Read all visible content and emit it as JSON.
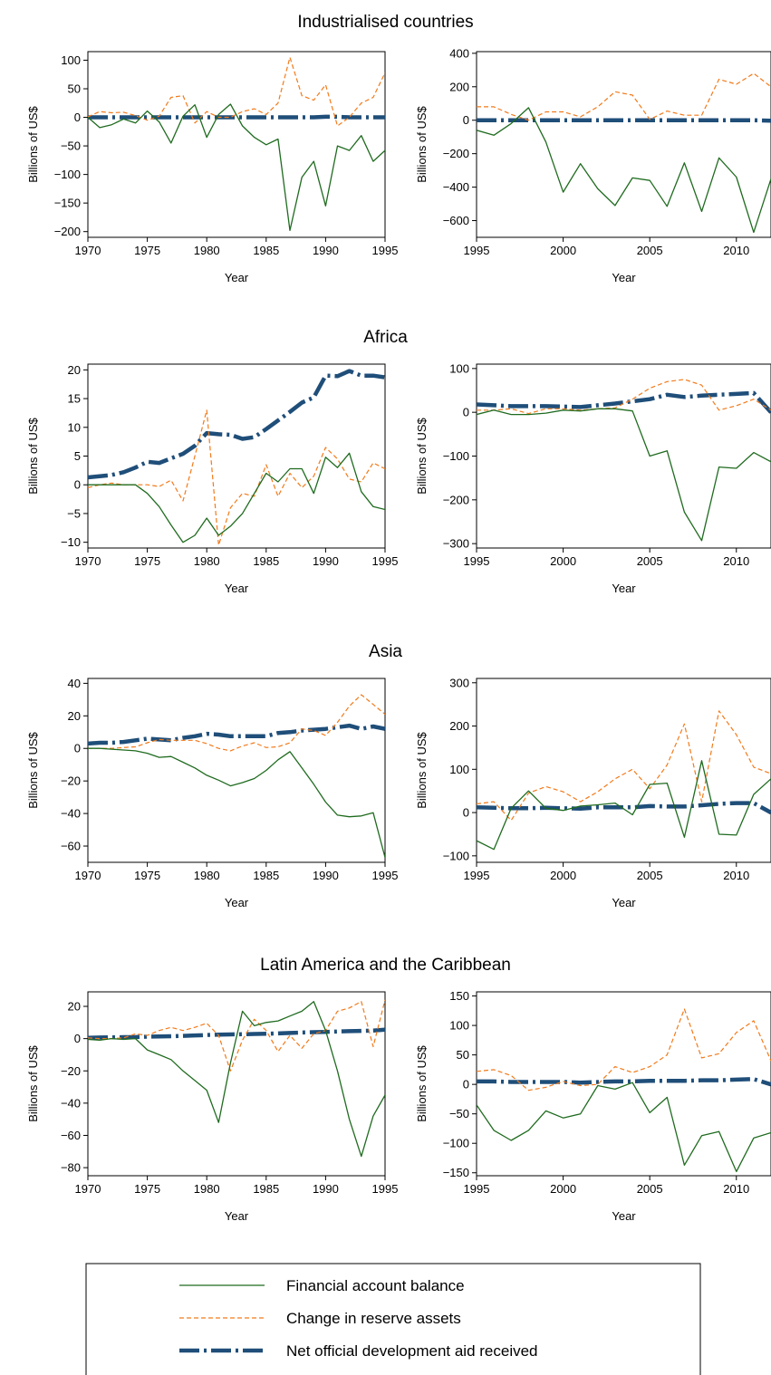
{
  "figure": {
    "legend": [
      {
        "key": "fab",
        "label": "Financial account balance"
      },
      {
        "key": "res",
        "label": "Change in reserve assets"
      },
      {
        "key": "oda",
        "label": "Net official development aid received"
      }
    ]
  },
  "chart_data": [
    {
      "type": "line",
      "panel_title": "Industrialised countries",
      "xlabel": "Year",
      "ylabel": "Billions of US$",
      "xlim": [
        1970,
        1995
      ],
      "ylim": [
        -210,
        115
      ],
      "xticks": [
        1970,
        1975,
        1980,
        1985,
        1990,
        1995
      ],
      "yticks": [
        -200,
        -150,
        -100,
        -50,
        0,
        50,
        100
      ],
      "x": [
        1970,
        1971,
        1972,
        1973,
        1974,
        1975,
        1976,
        1977,
        1978,
        1979,
        1980,
        1981,
        1982,
        1983,
        1984,
        1985,
        1986,
        1987,
        1988,
        1989,
        1990,
        1991,
        1992,
        1993,
        1994,
        1995
      ],
      "series": [
        {
          "key": "fab",
          "name": "Financial account balance",
          "values": [
            0,
            -18,
            -13,
            -3,
            -10,
            11,
            -8,
            -45,
            2,
            22,
            -35,
            5,
            23,
            -15,
            -35,
            -48,
            -38,
            -198,
            -105,
            -77,
            -155,
            -50,
            -58,
            -32,
            -77,
            -58
          ]
        },
        {
          "key": "res",
          "name": "Change in reserve assets",
          "values": [
            1,
            10,
            8,
            9,
            3,
            -5,
            2,
            35,
            38,
            -10,
            10,
            0,
            0,
            10,
            15,
            5,
            25,
            105,
            38,
            30,
            57,
            -15,
            0,
            25,
            35,
            78
          ]
        },
        {
          "key": "oda",
          "name": "Net official development aid received",
          "values": [
            0,
            0,
            0,
            0,
            0,
            0,
            0,
            0,
            0,
            0,
            0,
            0,
            0,
            0,
            0,
            0,
            0,
            0,
            0,
            0,
            1,
            1,
            0,
            0,
            0,
            0
          ]
        }
      ]
    },
    {
      "type": "line",
      "panel_title": "",
      "xlabel": "Year",
      "ylabel": "Billions of US$",
      "xlim": [
        1995,
        2012
      ],
      "ylim": [
        -700,
        410
      ],
      "xticks": [
        1995,
        2000,
        2005,
        2010
      ],
      "yticks": [
        -600,
        -400,
        -200,
        0,
        200,
        400
      ],
      "x": [
        1995,
        1996,
        1997,
        1998,
        1999,
        2000,
        2001,
        2002,
        2003,
        2004,
        2005,
        2006,
        2007,
        2008,
        2009,
        2010,
        2011,
        2012
      ],
      "series": [
        {
          "key": "fab",
          "name": "Financial account balance",
          "values": [
            -60,
            -90,
            -20,
            75,
            -130,
            -430,
            -260,
            -410,
            -510,
            -345,
            -360,
            -515,
            -255,
            -545,
            -225,
            -340,
            -670,
            -350
          ]
        },
        {
          "key": "res",
          "name": "Change in reserve assets",
          "values": [
            80,
            80,
            35,
            0,
            50,
            50,
            20,
            80,
            170,
            150,
            5,
            55,
            30,
            30,
            245,
            215,
            280,
            200
          ]
        },
        {
          "key": "oda",
          "name": "Net official development aid received",
          "values": [
            0,
            0,
            0,
            0,
            0,
            0,
            0,
            0,
            0,
            0,
            0,
            0,
            0,
            0,
            0,
            0,
            0,
            -3
          ]
        }
      ]
    },
    {
      "type": "line",
      "panel_title": "Africa",
      "xlabel": "Year",
      "ylabel": "Billions of US$",
      "xlim": [
        1970,
        1995
      ],
      "ylim": [
        -11,
        21
      ],
      "xticks": [
        1970,
        1975,
        1980,
        1985,
        1990,
        1995
      ],
      "yticks": [
        -10,
        -5,
        0,
        5,
        10,
        15,
        20
      ],
      "x": [
        1970,
        1971,
        1972,
        1973,
        1974,
        1975,
        1976,
        1977,
        1978,
        1979,
        1980,
        1981,
        1982,
        1983,
        1984,
        1985,
        1986,
        1987,
        1988,
        1989,
        1990,
        1991,
        1992,
        1993,
        1994,
        1995
      ],
      "series": [
        {
          "key": "fab",
          "name": "Financial account balance",
          "values": [
            0,
            0,
            0,
            0,
            0,
            -1.5,
            -3.8,
            -7,
            -10,
            -8.8,
            -5.8,
            -8.8,
            -7.2,
            -5,
            -1.5,
            2,
            0.5,
            2.8,
            2.8,
            -1.5,
            4.8,
            3,
            5.5,
            -1.2,
            -3.8,
            -4.3
          ]
        },
        {
          "key": "res",
          "name": "Change in reserve assets",
          "values": [
            -0.5,
            0,
            0.3,
            0,
            0,
            0,
            -0.3,
            0.8,
            -2.8,
            5,
            13,
            -10.5,
            -4,
            -1.5,
            -2,
            3.5,
            -2,
            2,
            -0.5,
            1.5,
            6.5,
            4.5,
            1,
            0.5,
            3.8,
            2.8
          ]
        },
        {
          "key": "oda",
          "name": "Net official development aid received",
          "values": [
            1.3,
            1.5,
            1.7,
            2.2,
            3,
            4,
            3.8,
            4.6,
            5.4,
            6.8,
            9,
            8.8,
            8.7,
            8,
            8.3,
            9.7,
            11.2,
            12.7,
            14.3,
            15.2,
            19,
            18.9,
            19.8,
            19,
            19,
            18.7
          ]
        }
      ]
    },
    {
      "type": "line",
      "panel_title": "",
      "xlabel": "Year",
      "ylabel": "Billions of US$",
      "xlim": [
        1995,
        2012
      ],
      "ylim": [
        -310,
        110
      ],
      "xticks": [
        1995,
        2000,
        2005,
        2010
      ],
      "yticks": [
        -300,
        -200,
        -100,
        0,
        100
      ],
      "x": [
        1995,
        1996,
        1997,
        1998,
        1999,
        2000,
        2001,
        2002,
        2003,
        2004,
        2005,
        2006,
        2007,
        2008,
        2009,
        2010,
        2011,
        2012
      ],
      "series": [
        {
          "key": "fab",
          "name": "Financial account balance",
          "values": [
            -5,
            5,
            -5,
            -5,
            -2,
            5,
            3,
            8,
            8,
            3,
            -100,
            -88,
            -228,
            -293,
            -125,
            -128,
            -92,
            -113
          ]
        },
        {
          "key": "res",
          "name": "Change in reserve assets",
          "values": [
            5,
            5,
            8,
            -3,
            8,
            8,
            5,
            8,
            10,
            30,
            55,
            70,
            75,
            62,
            5,
            15,
            30,
            5
          ]
        },
        {
          "key": "oda",
          "name": "Net official development aid received",
          "values": [
            18,
            16,
            14,
            14,
            14,
            13,
            12,
            16,
            20,
            25,
            30,
            40,
            35,
            38,
            40,
            42,
            44,
            0
          ]
        }
      ]
    },
    {
      "type": "line",
      "panel_title": "Asia",
      "xlabel": "Year",
      "ylabel": "Billions of US$",
      "xlim": [
        1970,
        1995
      ],
      "ylim": [
        -70,
        43
      ],
      "xticks": [
        1970,
        1975,
        1980,
        1985,
        1990,
        1995
      ],
      "yticks": [
        -60,
        -40,
        -20,
        0,
        20,
        40
      ],
      "x": [
        1970,
        1971,
        1972,
        1973,
        1974,
        1975,
        1976,
        1977,
        1978,
        1979,
        1980,
        1981,
        1982,
        1983,
        1984,
        1985,
        1986,
        1987,
        1988,
        1989,
        1990,
        1991,
        1992,
        1993,
        1994,
        1995
      ],
      "series": [
        {
          "key": "fab",
          "name": "Financial account balance",
          "values": [
            0,
            0,
            -0.5,
            -1,
            -1.5,
            -3,
            -5.5,
            -5,
            -8.5,
            -12,
            -16.5,
            -19.5,
            -23,
            -21,
            -18.5,
            -13.5,
            -7,
            -2,
            -12,
            -22,
            -33,
            -41,
            -42,
            -41.5,
            -39.5,
            -67
          ]
        },
        {
          "key": "res",
          "name": "Change in reserve assets",
          "values": [
            0,
            0,
            0,
            0.5,
            1,
            3.5,
            5.5,
            5,
            5,
            5,
            3,
            0,
            -1.5,
            1.5,
            3.5,
            0.5,
            1,
            3.5,
            12,
            11,
            8,
            16,
            26,
            33,
            27,
            21
          ]
        },
        {
          "key": "oda",
          "name": "Net official development aid received",
          "values": [
            3,
            3.5,
            3.5,
            4,
            5,
            6,
            5.5,
            5,
            6.5,
            7.5,
            9,
            8.5,
            7.5,
            7.5,
            7.5,
            7.5,
            9.5,
            10,
            11,
            11.5,
            12,
            13,
            14,
            12,
            13.5,
            12
          ]
        }
      ]
    },
    {
      "type": "line",
      "panel_title": "",
      "xlabel": "Year",
      "ylabel": "Billions of US$",
      "xlim": [
        1995,
        2012
      ],
      "ylim": [
        -115,
        310
      ],
      "xticks": [
        1995,
        2000,
        2005,
        2010
      ],
      "yticks": [
        -100,
        0,
        100,
        200,
        300
      ],
      "x": [
        1995,
        1996,
        1997,
        1998,
        1999,
        2000,
        2001,
        2002,
        2003,
        2004,
        2005,
        2006,
        2007,
        2008,
        2009,
        2010,
        2011,
        2012
      ],
      "series": [
        {
          "key": "fab",
          "name": "Financial account balance",
          "values": [
            -65,
            -85,
            10,
            50,
            10,
            5,
            15,
            18,
            22,
            -5,
            65,
            68,
            -57,
            120,
            -50,
            -52,
            42,
            78
          ]
        },
        {
          "key": "res",
          "name": "Change in reserve assets",
          "values": [
            20,
            25,
            -18,
            45,
            60,
            48,
            25,
            48,
            78,
            100,
            55,
            110,
            205,
            25,
            235,
            180,
            105,
            90
          ]
        },
        {
          "key": "oda",
          "name": "Net official development aid received",
          "values": [
            12,
            11,
            10,
            10,
            11,
            10,
            9,
            12,
            12,
            12,
            15,
            14,
            14,
            17,
            20,
            22,
            22,
            0
          ]
        }
      ]
    },
    {
      "type": "line",
      "panel_title": "Latin America and the Caribbean",
      "xlabel": "Year",
      "ylabel": "Billions of US$",
      "xlim": [
        1970,
        1995
      ],
      "ylim": [
        -85,
        29
      ],
      "xticks": [
        1970,
        1975,
        1980,
        1985,
        1990,
        1995
      ],
      "yticks": [
        -80,
        -60,
        -40,
        -20,
        0,
        20
      ],
      "x": [
        1970,
        1971,
        1972,
        1973,
        1974,
        1975,
        1976,
        1977,
        1978,
        1979,
        1980,
        1981,
        1982,
        1983,
        1984,
        1985,
        1986,
        1987,
        1988,
        1989,
        1990,
        1991,
        1992,
        1993,
        1994,
        1995
      ],
      "series": [
        {
          "key": "fab",
          "name": "Financial account balance",
          "values": [
            -0.5,
            -1,
            0,
            -0.5,
            0,
            -7,
            -10,
            -13,
            -20,
            -26,
            -32,
            -52,
            -15,
            17,
            8,
            10,
            11,
            14,
            17,
            23,
            5,
            -20,
            -50,
            -73,
            -48,
            -35
          ]
        },
        {
          "key": "res",
          "name": "Change in reserve assets",
          "values": [
            0.5,
            0,
            0,
            0.5,
            3,
            2,
            5,
            7,
            5,
            7,
            9.5,
            2,
            -20,
            -1,
            12,
            5,
            -8,
            2,
            -6,
            3,
            5,
            17,
            19,
            23,
            -5,
            24
          ]
        },
        {
          "key": "oda",
          "name": "Net official development aid received",
          "values": [
            0.5,
            0.7,
            0.8,
            0.9,
            1,
            1.2,
            1.3,
            1.5,
            1.7,
            2,
            2.2,
            2.5,
            2.6,
            2.7,
            2.9,
            3,
            3.2,
            3.5,
            3.8,
            4,
            4.2,
            4.4,
            4.6,
            4.8,
            5,
            5.5
          ]
        }
      ]
    },
    {
      "type": "line",
      "panel_title": "",
      "xlabel": "Year",
      "ylabel": "Billions of US$",
      "xlim": [
        1995,
        2012
      ],
      "ylim": [
        -155,
        157
      ],
      "xticks": [
        1995,
        2000,
        2005,
        2010
      ],
      "yticks": [
        -150,
        -100,
        -50,
        0,
        50,
        100,
        150
      ],
      "x": [
        1995,
        1996,
        1997,
        1998,
        1999,
        2000,
        2001,
        2002,
        2003,
        2004,
        2005,
        2006,
        2007,
        2008,
        2009,
        2010,
        2011,
        2012
      ],
      "series": [
        {
          "key": "fab",
          "name": "Financial account balance",
          "values": [
            -35,
            -78,
            -95,
            -78,
            -45,
            -57,
            -50,
            -2,
            -8,
            3,
            -48,
            -22,
            -137,
            -87,
            -80,
            -148,
            -91,
            -82
          ]
        },
        {
          "key": "res",
          "name": "Change in reserve assets",
          "values": [
            22,
            25,
            15,
            -10,
            -5,
            5,
            -2,
            0,
            30,
            20,
            30,
            50,
            128,
            45,
            52,
            88,
            108,
            40
          ]
        },
        {
          "key": "oda",
          "name": "Net official development aid received",
          "values": [
            5,
            5,
            4,
            4,
            4,
            4,
            3,
            4,
            5,
            5,
            6,
            6,
            6,
            7,
            7,
            8,
            9,
            0
          ]
        }
      ]
    }
  ]
}
